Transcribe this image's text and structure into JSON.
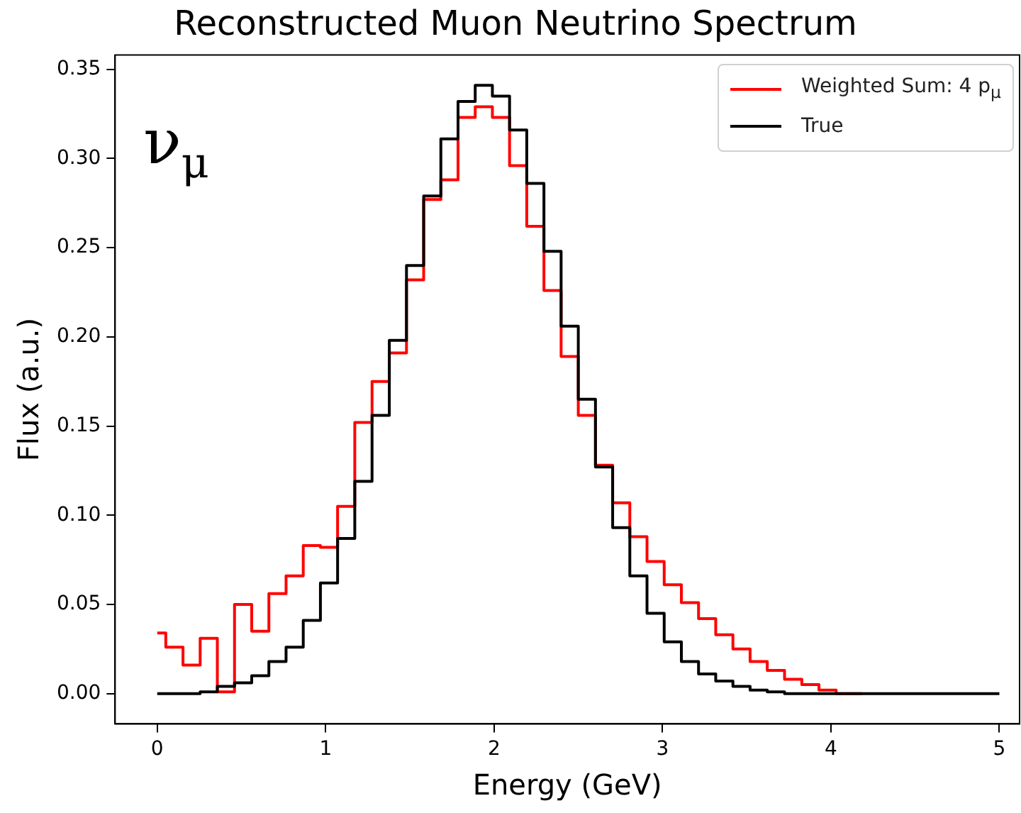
{
  "chart_data": {
    "type": "step",
    "title": "Reconstructed Muon Neutrino Spectrum",
    "xlabel": "Energy (GeV)",
    "ylabel": "Flux (a.u.)",
    "annotations": [
      "ν$_{μ}$"
    ],
    "x": [
      0,
      0.102,
      0.204,
      0.306,
      0.408,
      0.51,
      0.612,
      0.714,
      0.816,
      0.918,
      1.02,
      1.122,
      1.224,
      1.327,
      1.429,
      1.531,
      1.633,
      1.735,
      1.837,
      1.939,
      2.041,
      2.143,
      2.245,
      2.347,
      2.449,
      2.551,
      2.653,
      2.755,
      2.857,
      2.959,
      3.061,
      3.163,
      3.265,
      3.367,
      3.469,
      3.571,
      3.673,
      3.776,
      3.878,
      3.98,
      4.082,
      4.184,
      4.286,
      4.388,
      4.49,
      4.592,
      4.694,
      4.796,
      4.898,
      5
    ],
    "series": [
      {
        "name": "Weighted Sum: 4 p$_{μ}$",
        "color": "#ff0000",
        "values": [
          0.034,
          0.026,
          0.016,
          0.031,
          0.001,
          0.05,
          0.035,
          0.056,
          0.066,
          0.083,
          0.082,
          0.105,
          0.152,
          0.175,
          0.191,
          0.232,
          0.277,
          0.288,
          0.323,
          0.329,
          0.323,
          0.296,
          0.262,
          0.226,
          0.189,
          0.156,
          0.128,
          0.107,
          0.088,
          0.074,
          0.061,
          0.051,
          0.042,
          0.033,
          0.025,
          0.018,
          0.013,
          0.008,
          0.005,
          0.002,
          0,
          0,
          null,
          null,
          null,
          null,
          null,
          null,
          null,
          null
        ]
      },
      {
        "name": "True",
        "color": "#000000",
        "values": [
          0,
          0,
          0,
          0.001,
          0.004,
          0.006,
          0.01,
          0.018,
          0.026,
          0.041,
          0.062,
          0.087,
          0.119,
          0.156,
          0.198,
          0.24,
          0.279,
          0.311,
          0.332,
          0.341,
          0.335,
          0.316,
          0.286,
          0.248,
          0.206,
          0.165,
          0.127,
          0.093,
          0.066,
          0.045,
          0.029,
          0.018,
          0.011,
          0.007,
          0.004,
          0.002,
          0.001,
          0,
          0,
          0,
          0,
          0,
          0,
          0,
          0,
          0,
          0,
          0,
          0,
          0
        ]
      }
    ],
    "xlim": [
      -0.25,
      5.12
    ],
    "xticks": [
      0,
      1,
      2,
      3,
      4,
      5
    ],
    "ylim": [
      -0.017,
      0.358
    ],
    "yticks": [
      {
        "value": 0,
        "label": "0.00"
      },
      {
        "value": 0.05,
        "label": "0.05"
      },
      {
        "value": 0.1,
        "label": "0.10"
      },
      {
        "value": 0.15,
        "label": "0.15"
      },
      {
        "value": 0.2,
        "label": "0.20"
      },
      {
        "value": 0.25,
        "label": "0.25"
      },
      {
        "value": 0.3,
        "label": "0.30"
      },
      {
        "value": 0.35,
        "label": "0.35"
      }
    ],
    "legend": "top right"
  }
}
